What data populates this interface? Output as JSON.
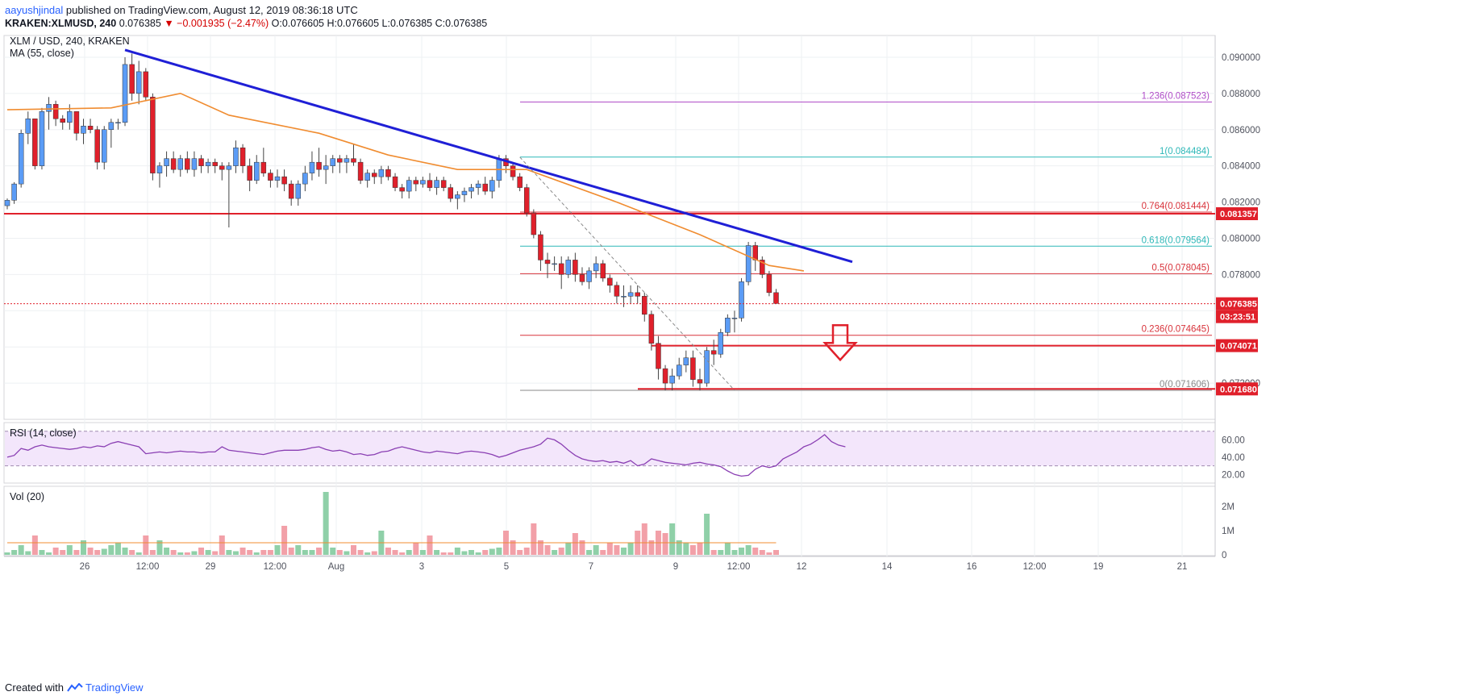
{
  "header": {
    "author": "aayushjindal",
    "published_text": "published on TradingView.com, August 12, 2019 08:36:18 UTC",
    "symbol_line": "KRAKEN:XLMUSD, 240",
    "last": "0.076385",
    "change": "▼ −0.001935 (−2.47%)",
    "ohlc": "O:0.076605 H:0.076605 L:0.076385 C:0.076385"
  },
  "panes": {
    "main_title": "XLM / USD, 240, KRAKEN",
    "ma_label": "MA (55, close)",
    "rsi_label": "RSI (14, close)",
    "vol_label": "Vol (20)"
  },
  "footer": {
    "created_with": "Created with",
    "brand": "TradingView"
  },
  "colors": {
    "up": "#5b9cf6",
    "down": "#e0202b",
    "ma": "#f08c30",
    "trendline": "#1f1fd6",
    "support": "#e0202b",
    "fib_magenta": "#b04dc8",
    "fib_teal": "#2eb8b8",
    "rsi_line": "#8a3fb3",
    "rsi_band": "#f3e6fb"
  },
  "chart_data": [
    {
      "type": "candlestick",
      "title": "XLM / USD, 240, KRAKEN",
      "x_ticks": [
        "26",
        "12:00",
        "29",
        "12:00",
        "Aug",
        "3",
        "5",
        "7",
        "9",
        "12:00",
        "12",
        "14",
        "16",
        "12:00",
        "19",
        "21"
      ],
      "y_ticks": [
        "0.090000",
        "0.088000",
        "0.086000",
        "0.084000",
        "0.082000",
        "0.080000",
        "0.078000",
        "0.072000"
      ],
      "ylim": [
        0.07,
        0.0912
      ],
      "candles": [
        [
          0.0818,
          0.0822,
          0.0816,
          0.0821
        ],
        [
          0.0821,
          0.0831,
          0.0819,
          0.083
        ],
        [
          0.083,
          0.086,
          0.0828,
          0.0858
        ],
        [
          0.0858,
          0.087,
          0.0852,
          0.0866
        ],
        [
          0.0866,
          0.0866,
          0.0838,
          0.084
        ],
        [
          0.084,
          0.0872,
          0.0838,
          0.087
        ],
        [
          0.087,
          0.0878,
          0.086,
          0.0874
        ],
        [
          0.0874,
          0.0876,
          0.0862,
          0.0866
        ],
        [
          0.0866,
          0.0868,
          0.086,
          0.0864
        ],
        [
          0.0864,
          0.0874,
          0.086,
          0.087
        ],
        [
          0.087,
          0.087,
          0.0854,
          0.0858
        ],
        [
          0.0858,
          0.0866,
          0.0852,
          0.0862
        ],
        [
          0.0862,
          0.0866,
          0.0858,
          0.086
        ],
        [
          0.086,
          0.0862,
          0.0838,
          0.0842
        ],
        [
          0.0842,
          0.0862,
          0.0838,
          0.086
        ],
        [
          0.086,
          0.0866,
          0.085,
          0.0864
        ],
        [
          0.0864,
          0.0866,
          0.086,
          0.0864
        ],
        [
          0.0864,
          0.09,
          0.0862,
          0.0896
        ],
        [
          0.0896,
          0.0902,
          0.0876,
          0.088
        ],
        [
          0.088,
          0.0898,
          0.0874,
          0.0892
        ],
        [
          0.0892,
          0.0894,
          0.0876,
          0.0878
        ],
        [
          0.0878,
          0.088,
          0.0832,
          0.0836
        ],
        [
          0.0836,
          0.0842,
          0.0828,
          0.084
        ],
        [
          0.084,
          0.0848,
          0.0834,
          0.0844
        ],
        [
          0.0844,
          0.0848,
          0.0836,
          0.0838
        ],
        [
          0.0838,
          0.0846,
          0.0834,
          0.0844
        ],
        [
          0.0844,
          0.0848,
          0.0836,
          0.0838
        ],
        [
          0.0838,
          0.0848,
          0.0834,
          0.0844
        ],
        [
          0.0844,
          0.0846,
          0.0836,
          0.084
        ],
        [
          0.084,
          0.0844,
          0.0836,
          0.0842
        ],
        [
          0.0842,
          0.0844,
          0.0836,
          0.084
        ],
        [
          0.084,
          0.0842,
          0.0832,
          0.0838
        ],
        [
          0.0838,
          0.0842,
          0.0806,
          0.084
        ],
        [
          0.084,
          0.0854,
          0.0836,
          0.085
        ],
        [
          0.085,
          0.0852,
          0.0836,
          0.084
        ],
        [
          0.084,
          0.0844,
          0.0826,
          0.0832
        ],
        [
          0.0832,
          0.0846,
          0.083,
          0.0842
        ],
        [
          0.0842,
          0.085,
          0.0834,
          0.0836
        ],
        [
          0.0836,
          0.0838,
          0.0828,
          0.0832
        ],
        [
          0.0832,
          0.0838,
          0.0828,
          0.0834
        ],
        [
          0.0834,
          0.0838,
          0.0826,
          0.083
        ],
        [
          0.083,
          0.0832,
          0.0818,
          0.0822
        ],
        [
          0.0822,
          0.0832,
          0.0818,
          0.083
        ],
        [
          0.083,
          0.084,
          0.0826,
          0.0836
        ],
        [
          0.0836,
          0.0848,
          0.0832,
          0.0842
        ],
        [
          0.0842,
          0.085,
          0.0834,
          0.0838
        ],
        [
          0.0838,
          0.0846,
          0.083,
          0.084
        ],
        [
          0.084,
          0.0846,
          0.0836,
          0.0844
        ],
        [
          0.0844,
          0.0846,
          0.0836,
          0.0842
        ],
        [
          0.0842,
          0.0846,
          0.0836,
          0.0844
        ],
        [
          0.0844,
          0.0852,
          0.084,
          0.0842
        ],
        [
          0.0842,
          0.0844,
          0.083,
          0.0832
        ],
        [
          0.0832,
          0.0838,
          0.0828,
          0.0836
        ],
        [
          0.0836,
          0.0838,
          0.083,
          0.0834
        ],
        [
          0.0834,
          0.084,
          0.083,
          0.0838
        ],
        [
          0.0838,
          0.084,
          0.0832,
          0.0834
        ],
        [
          0.0834,
          0.0836,
          0.0826,
          0.0828
        ],
        [
          0.0828,
          0.083,
          0.0822,
          0.0826
        ],
        [
          0.0826,
          0.0834,
          0.0822,
          0.0832
        ],
        [
          0.0832,
          0.0834,
          0.0826,
          0.083
        ],
        [
          0.083,
          0.0834,
          0.0828,
          0.0832
        ],
        [
          0.0832,
          0.0836,
          0.0826,
          0.0828
        ],
        [
          0.0828,
          0.0834,
          0.0824,
          0.0832
        ],
        [
          0.0832,
          0.0834,
          0.0826,
          0.0828
        ],
        [
          0.0828,
          0.083,
          0.082,
          0.0822
        ],
        [
          0.0822,
          0.0826,
          0.0816,
          0.0824
        ],
        [
          0.0824,
          0.0828,
          0.082,
          0.0826
        ],
        [
          0.0826,
          0.083,
          0.0822,
          0.0828
        ],
        [
          0.0828,
          0.0832,
          0.0824,
          0.083
        ],
        [
          0.083,
          0.0834,
          0.0824,
          0.0826
        ],
        [
          0.0826,
          0.0834,
          0.0822,
          0.0832
        ],
        [
          0.0832,
          0.0846,
          0.0828,
          0.0844
        ],
        [
          0.0844,
          0.0846,
          0.0836,
          0.084
        ],
        [
          0.084,
          0.0842,
          0.0832,
          0.0834
        ],
        [
          0.0834,
          0.0836,
          0.0826,
          0.0828
        ],
        [
          0.0828,
          0.083,
          0.0812,
          0.0814
        ],
        [
          0.0814,
          0.0816,
          0.08,
          0.0802
        ],
        [
          0.0802,
          0.0804,
          0.0782,
          0.0788
        ],
        [
          0.0788,
          0.0792,
          0.0778,
          0.0786
        ],
        [
          0.0786,
          0.079,
          0.0782,
          0.0786
        ],
        [
          0.0786,
          0.079,
          0.0772,
          0.078
        ],
        [
          0.078,
          0.079,
          0.0778,
          0.0788
        ],
        [
          0.0788,
          0.0792,
          0.0776,
          0.078
        ],
        [
          0.078,
          0.0784,
          0.0774,
          0.0776
        ],
        [
          0.0776,
          0.0784,
          0.0772,
          0.0782
        ],
        [
          0.0782,
          0.079,
          0.0778,
          0.0786
        ],
        [
          0.0786,
          0.0788,
          0.0776,
          0.0778
        ],
        [
          0.0778,
          0.078,
          0.077,
          0.0774
        ],
        [
          0.0774,
          0.0776,
          0.0764,
          0.0768
        ],
        [
          0.0768,
          0.0774,
          0.0762,
          0.0768
        ],
        [
          0.0768,
          0.0774,
          0.0764,
          0.077
        ],
        [
          0.077,
          0.0774,
          0.0764,
          0.0768
        ],
        [
          0.0768,
          0.077,
          0.0754,
          0.0758
        ],
        [
          0.0758,
          0.076,
          0.0738,
          0.0742
        ],
        [
          0.0742,
          0.0746,
          0.0722,
          0.0728
        ],
        [
          0.0728,
          0.073,
          0.0716,
          0.072
        ],
        [
          0.072,
          0.0728,
          0.0716,
          0.0724
        ],
        [
          0.0724,
          0.0734,
          0.0722,
          0.073
        ],
        [
          0.073,
          0.0738,
          0.0726,
          0.0734
        ],
        [
          0.0734,
          0.0738,
          0.0718,
          0.0722
        ],
        [
          0.0722,
          0.0728,
          0.0716,
          0.072
        ],
        [
          0.072,
          0.074,
          0.0718,
          0.0738
        ],
        [
          0.0738,
          0.0744,
          0.073,
          0.0736
        ],
        [
          0.0736,
          0.075,
          0.0734,
          0.0748
        ],
        [
          0.0748,
          0.0758,
          0.0746,
          0.0756
        ],
        [
          0.0756,
          0.076,
          0.0748,
          0.0756
        ],
        [
          0.0756,
          0.0778,
          0.0754,
          0.0776
        ],
        [
          0.0776,
          0.0798,
          0.0774,
          0.0796
        ],
        [
          0.0796,
          0.0798,
          0.0782,
          0.0788
        ],
        [
          0.0788,
          0.079,
          0.0778,
          0.078
        ],
        [
          0.078,
          0.0782,
          0.0768,
          0.077
        ],
        [
          0.077,
          0.0772,
          0.0764,
          0.0764
        ]
      ],
      "ma55": [
        [
          0,
          0.0871
        ],
        [
          15,
          0.0872
        ],
        [
          25,
          0.088
        ],
        [
          32,
          0.0868
        ],
        [
          45,
          0.0858
        ],
        [
          55,
          0.0846
        ],
        [
          65,
          0.0838
        ],
        [
          75,
          0.0838
        ],
        [
          88,
          0.082
        ],
        [
          100,
          0.0802
        ],
        [
          110,
          0.0785
        ],
        [
          115,
          0.0782
        ]
      ],
      "trendline": {
        "from": [
          17,
          0.0904
        ],
        "to": [
          122,
          0.0787
        ]
      },
      "support_levels": [
        0.081357,
        0.074071,
        0.07168
      ],
      "fib_levels": [
        {
          "ratio": "1.236",
          "value": 0.087523,
          "label": "1.236(0.087523)"
        },
        {
          "ratio": "1",
          "value": 0.084484,
          "label": "1(0.084484)"
        },
        {
          "ratio": "0.764",
          "value": 0.081444,
          "label": "0.764(0.081444)"
        },
        {
          "ratio": "0.618",
          "value": 0.079564,
          "label": "0.618(0.079564)"
        },
        {
          "ratio": "0.5",
          "value": 0.078045,
          "label": "0.5(0.078045)"
        },
        {
          "ratio": "0.236",
          "value": 0.074645,
          "label": "0.236(0.074645)"
        },
        {
          "ratio": "0",
          "value": 0.071606,
          "label": "0(0.071606)"
        }
      ],
      "price_tags": [
        {
          "value": 0.081357,
          "label": "0.081357"
        },
        {
          "value": 0.076385,
          "label": "0.076385"
        },
        {
          "value": 0.074071,
          "label": "0.074071"
        },
        {
          "value": 0.07168,
          "label": "0.071680"
        }
      ],
      "countdown": "03:23:51",
      "current_price": 0.076385
    },
    {
      "type": "line",
      "title": "RSI (14, close)",
      "y_ticks": [
        "60.00",
        "40.00",
        "20.00"
      ],
      "ylim": [
        10,
        80
      ],
      "band": [
        30,
        70
      ],
      "values": [
        40,
        42,
        50,
        48,
        52,
        54,
        52,
        51,
        50,
        49,
        50,
        52,
        51,
        53,
        52,
        56,
        58,
        56,
        54,
        52,
        44,
        45,
        46,
        45,
        46,
        47,
        46,
        46,
        45,
        46,
        46,
        52,
        48,
        47,
        46,
        45,
        44,
        43,
        45,
        47,
        48,
        48,
        48,
        49,
        51,
        52,
        49,
        47,
        48,
        46,
        43,
        44,
        42,
        43,
        46,
        47,
        50,
        52,
        50,
        48,
        46,
        45,
        47,
        46,
        45,
        44,
        46,
        47,
        46,
        45,
        43,
        40,
        42,
        45,
        48,
        50,
        52,
        55,
        62,
        60,
        55,
        48,
        42,
        38,
        36,
        35,
        36,
        34,
        35,
        33,
        36,
        30,
        32,
        38,
        36,
        34,
        33,
        32,
        31,
        33,
        34,
        32,
        31,
        29,
        24,
        20,
        18,
        19,
        26,
        30,
        28,
        30,
        38,
        42,
        46,
        52,
        55,
        60,
        66,
        58,
        54,
        52
      ]
    },
    {
      "type": "bar",
      "title": "Vol (20)",
      "y_ticks": [
        "2M",
        "1M",
        "0"
      ],
      "ylim": [
        0,
        2800000
      ],
      "values": [
        100000,
        200000,
        400000,
        150000,
        800000,
        200000,
        100000,
        300000,
        200000,
        400000,
        200000,
        600000,
        300000,
        200000,
        250000,
        400000,
        500000,
        300000,
        200000,
        100000,
        800000,
        200000,
        600000,
        300000,
        200000,
        100000,
        100000,
        150000,
        300000,
        200000,
        150000,
        800000,
        200000,
        150000,
        300000,
        200000,
        100000,
        200000,
        200000,
        400000,
        1200000,
        300000,
        400000,
        200000,
        200000,
        300000,
        2600000,
        300000,
        200000,
        150000,
        400000,
        200000,
        100000,
        150000,
        1000000,
        300000,
        200000,
        100000,
        200000,
        500000,
        200000,
        800000,
        200000,
        100000,
        100000,
        300000,
        150000,
        200000,
        100000,
        200000,
        250000,
        300000,
        1000000,
        600000,
        200000,
        300000,
        1300000,
        600000,
        400000,
        200000,
        300000,
        500000,
        900000,
        600000,
        200000,
        400000,
        200000,
        500000,
        400000,
        300000,
        500000,
        1000000,
        1300000,
        600000,
        1000000,
        900000,
        1300000,
        600000,
        500000,
        400000,
        500000,
        1700000,
        200000,
        200000,
        500000,
        200000,
        300000,
        400000,
        300000,
        200000,
        100000,
        200000
      ],
      "ma20": 500000
    }
  ]
}
